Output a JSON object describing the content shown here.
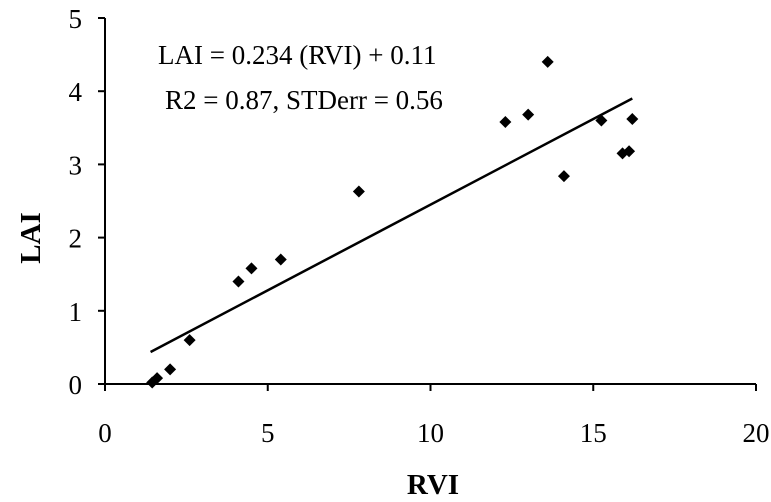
{
  "chart_data": {
    "type": "scatter",
    "xlabel": "RVI",
    "ylabel": "LAI",
    "xlim": [
      0,
      20
    ],
    "ylim": [
      0,
      5
    ],
    "x_ticks": [
      0,
      5,
      10,
      15,
      20
    ],
    "y_ticks": [
      0,
      1,
      2,
      3,
      4,
      5
    ],
    "grid": false,
    "series": [
      {
        "points": [
          {
            "x": 1.45,
            "y": 0.02
          },
          {
            "x": 1.6,
            "y": 0.08
          },
          {
            "x": 2.0,
            "y": 0.2
          },
          {
            "x": 2.6,
            "y": 0.6
          },
          {
            "x": 4.1,
            "y": 1.4
          },
          {
            "x": 4.5,
            "y": 1.58
          },
          {
            "x": 5.4,
            "y": 1.7
          },
          {
            "x": 7.8,
            "y": 2.63
          },
          {
            "x": 12.3,
            "y": 3.58
          },
          {
            "x": 13.0,
            "y": 3.68
          },
          {
            "x": 13.6,
            "y": 4.4
          },
          {
            "x": 14.1,
            "y": 2.84
          },
          {
            "x": 15.25,
            "y": 3.6
          },
          {
            "x": 15.9,
            "y": 3.15
          },
          {
            "x": 16.1,
            "y": 3.18
          },
          {
            "x": 16.2,
            "y": 3.62
          }
        ]
      }
    ],
    "trendline": {
      "slope": 0.234,
      "intercept": 0.11,
      "x_range": [
        1.4,
        16.2
      ]
    },
    "annotations": [
      "LAI = 0.234 (RVI) + 0.11",
      "R2 = 0.87, STDerr = 0.56"
    ]
  }
}
